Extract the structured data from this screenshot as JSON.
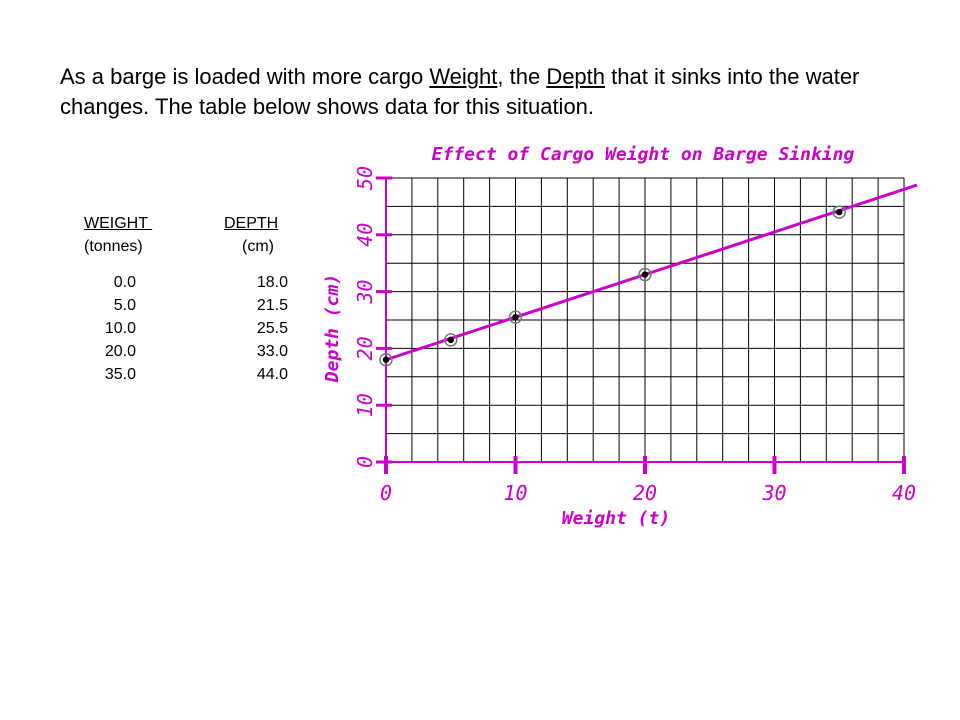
{
  "intro": {
    "part1": "As a barge is loaded with more cargo ",
    "weight_word": "Weight",
    "part2": ", the ",
    "depth_word": "Depth",
    "part3": " that it sinks into the water changes.  The table below shows data for this situation."
  },
  "table": {
    "weight_header": "WEIGHT ",
    "weight_unit": "(tonnes)",
    "depth_header": "DEPTH",
    "depth_unit": "(cm)",
    "weights": [
      "0.0",
      "5.0",
      "10.0",
      "20.0",
      "35.0"
    ],
    "depths": [
      "18.0",
      "21.5",
      "25.5",
      "33.0",
      "44.0"
    ]
  },
  "chart_data": {
    "type": "scatter",
    "title": "Effect of Cargo Weight on Barge Sinking",
    "xlabel": "Weight (t)",
    "ylabel": "Depth (cm)",
    "xlim": [
      0,
      40
    ],
    "ylim": [
      0,
      50
    ],
    "x_ticks": [
      "0",
      "10",
      "20",
      "30",
      "40"
    ],
    "y_ticks": [
      "0",
      "10",
      "20",
      "30",
      "40",
      "50"
    ],
    "grid": true,
    "points": [
      {
        "x": 0,
        "y": 18.0
      },
      {
        "x": 5,
        "y": 21.5
      },
      {
        "x": 10,
        "y": 25.5
      },
      {
        "x": 20,
        "y": 33.0
      },
      {
        "x": 35,
        "y": 44.0
      }
    ],
    "trendline": {
      "intercept": 18.0,
      "slope": 0.75,
      "x_from": 0,
      "x_to": 41
    },
    "colors": {
      "accent": "#cc00cc",
      "grid": "#000000"
    }
  }
}
